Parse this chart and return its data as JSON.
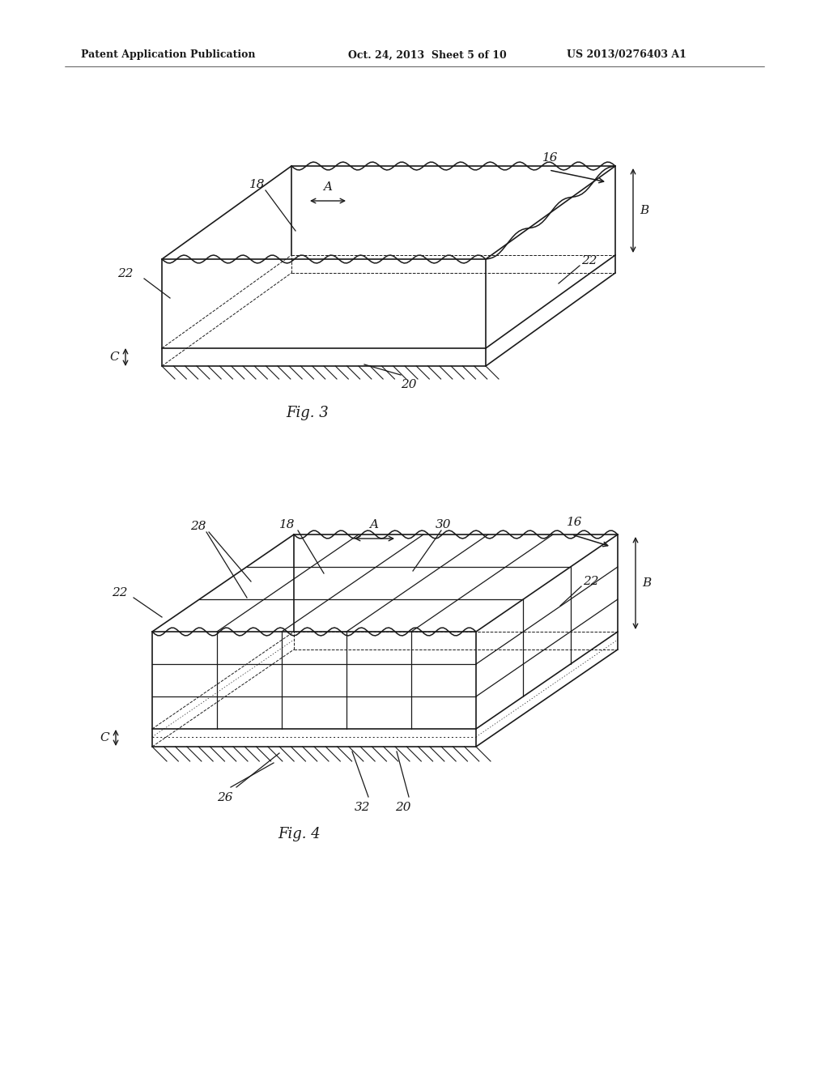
{
  "bg_color": "#ffffff",
  "line_color": "#1a1a1a",
  "header_text_left": "Patent Application Publication",
  "header_text_mid": "Oct. 24, 2013  Sheet 5 of 10",
  "header_text_right": "US 2013/0276403 A1",
  "fig3_label": "Fig. 3",
  "fig4_label": "Fig. 4"
}
